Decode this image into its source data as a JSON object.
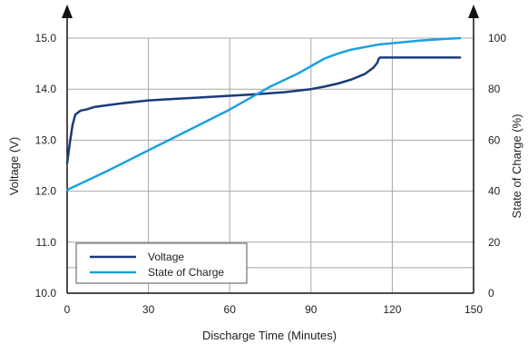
{
  "chart_data": {
    "type": "line",
    "xlabel": "Discharge Time (Minutes)",
    "ylabel_left": "Voltage (V)",
    "ylabel_right": "State of Charge (%)",
    "xlim": [
      0,
      150
    ],
    "ylim_left": [
      10.0,
      15.0
    ],
    "ylim_right": [
      0,
      100
    ],
    "x_ticks": [
      0,
      30,
      60,
      90,
      120,
      150
    ],
    "x_tick_labels": [
      "0",
      "30",
      "60",
      "90",
      "120",
      "150"
    ],
    "y_left_ticks": [
      10.0,
      11.0,
      12.0,
      13.0,
      14.0,
      15.0
    ],
    "y_left_tick_labels": [
      "10.0",
      "11.0",
      "12.0",
      "13.0",
      "14.0",
      "15.0"
    ],
    "y_right_ticks": [
      0,
      20,
      40,
      60,
      80,
      100
    ],
    "y_right_tick_labels": [
      "0",
      "20",
      "40",
      "60",
      "80",
      "100"
    ],
    "grid": true,
    "legend_position": "bottom-left",
    "series": [
      {
        "name": "Voltage",
        "axis": "left",
        "color": "#1a3a7a",
        "x": [
          0,
          1,
          2,
          3,
          5,
          7,
          10,
          20,
          30,
          40,
          50,
          60,
          70,
          80,
          90,
          95,
          100,
          105,
          110,
          113,
          114.5,
          115,
          115.5,
          130,
          145
        ],
        "y": [
          12.55,
          12.95,
          13.3,
          13.5,
          13.58,
          13.6,
          13.65,
          13.72,
          13.78,
          13.81,
          13.84,
          13.87,
          13.9,
          13.94,
          14.0,
          14.05,
          14.11,
          14.19,
          14.3,
          14.42,
          14.52,
          14.6,
          14.62,
          14.62,
          14.62
        ]
      },
      {
        "name": "State of Charge",
        "axis": "right",
        "color": "#1ba1e0",
        "x": [
          0,
          15,
          30,
          45,
          60,
          75,
          85,
          90,
          95,
          100,
          105,
          110,
          115,
          120,
          130,
          140,
          145
        ],
        "y": [
          40.5,
          48,
          56,
          64,
          72,
          81,
          86,
          89,
          92,
          94,
          95.5,
          96.5,
          97.5,
          98,
          99,
          99.7,
          100
        ]
      }
    ]
  }
}
